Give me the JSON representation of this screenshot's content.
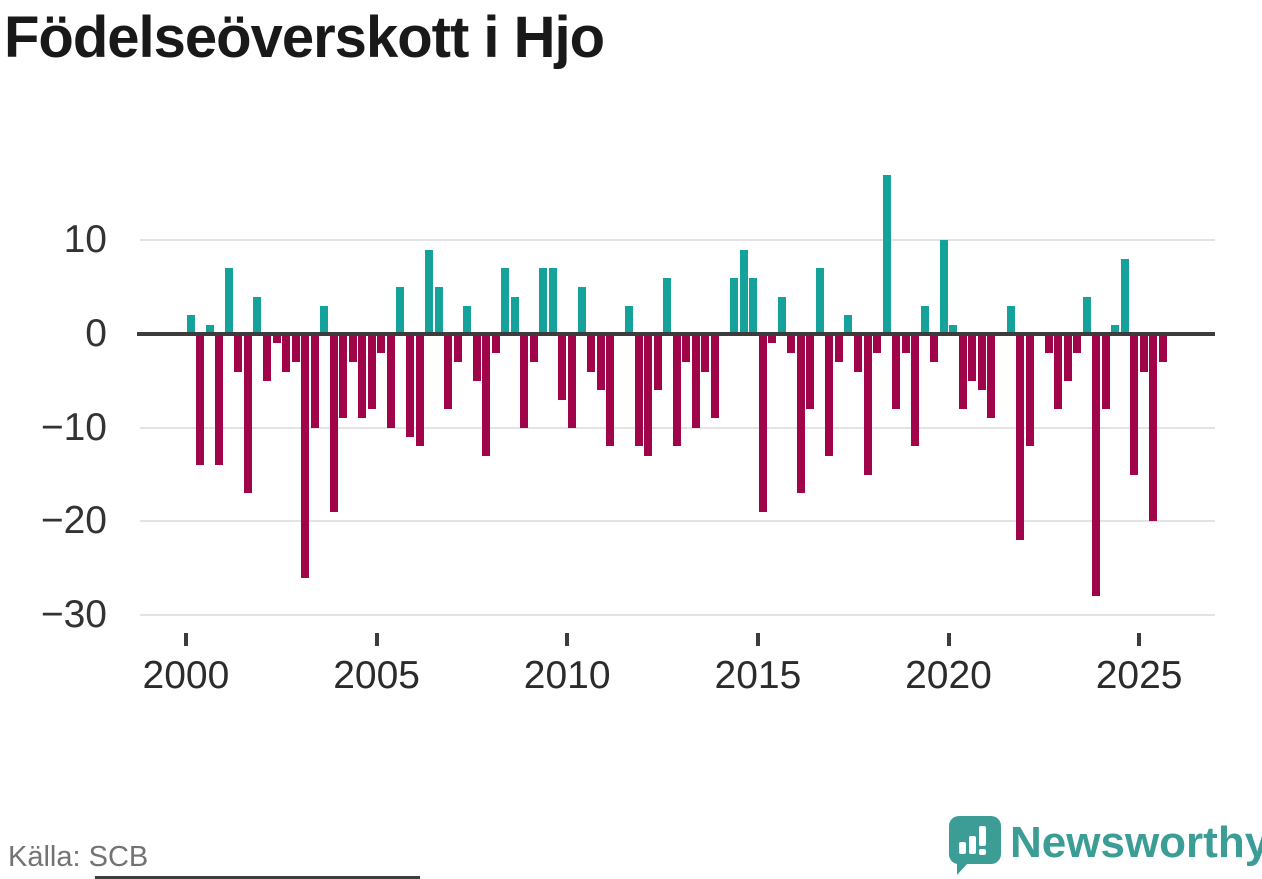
{
  "title": "Födelseöverskott i Hjo",
  "footer": {
    "source": "Källa: SCB",
    "brand": "Newsworthy"
  },
  "chart_data": {
    "type": "bar",
    "title": "Födelseöverskott i Hjo",
    "x_unit": "quarter",
    "start": "2000-Q1",
    "end": "2025-Q3",
    "series": [
      {
        "year": 2000,
        "values": [
          2,
          -14,
          1,
          -14
        ]
      },
      {
        "year": 2001,
        "values": [
          7,
          -4,
          -17,
          4
        ]
      },
      {
        "year": 2002,
        "values": [
          -5,
          -1,
          -4,
          -3
        ]
      },
      {
        "year": 2003,
        "values": [
          -26,
          -10,
          3,
          -19
        ]
      },
      {
        "year": 2004,
        "values": [
          -9,
          -3,
          -9,
          -8
        ]
      },
      {
        "year": 2005,
        "values": [
          -2,
          -10,
          5,
          -11
        ]
      },
      {
        "year": 2006,
        "values": [
          -12,
          9,
          5,
          -8
        ]
      },
      {
        "year": 2007,
        "values": [
          -3,
          3,
          -5,
          -13
        ]
      },
      {
        "year": 2008,
        "values": [
          -2,
          7,
          4,
          -10
        ]
      },
      {
        "year": 2009,
        "values": [
          -3,
          7,
          7,
          -7
        ]
      },
      {
        "year": 2010,
        "values": [
          -10,
          5,
          -4,
          -6
        ]
      },
      {
        "year": 2011,
        "values": [
          -12,
          0,
          3,
          -12
        ]
      },
      {
        "year": 2012,
        "values": [
          -13,
          -6,
          6,
          -12
        ]
      },
      {
        "year": 2013,
        "values": [
          -3,
          -10,
          -4,
          -9
        ]
      },
      {
        "year": 2014,
        "values": [
          0,
          6,
          9,
          6
        ]
      },
      {
        "year": 2015,
        "values": [
          -19,
          -1,
          4,
          -2
        ]
      },
      {
        "year": 2016,
        "values": [
          -17,
          -8,
          7,
          -13
        ]
      },
      {
        "year": 2017,
        "values": [
          -3,
          2,
          -4,
          -15
        ]
      },
      {
        "year": 2018,
        "values": [
          -2,
          17,
          -8,
          -2
        ]
      },
      {
        "year": 2019,
        "values": [
          -12,
          3,
          -3,
          10
        ]
      },
      {
        "year": 2020,
        "values": [
          1,
          -8,
          -5,
          -6
        ]
      },
      {
        "year": 2021,
        "values": [
          -9,
          0,
          3,
          -22
        ]
      },
      {
        "year": 2022,
        "values": [
          -12,
          0,
          -2,
          -8
        ]
      },
      {
        "year": 2023,
        "values": [
          -5,
          -2,
          4,
          -28
        ]
      },
      {
        "year": 2024,
        "values": [
          -8,
          1,
          8,
          -15
        ]
      },
      {
        "year": 2025,
        "values": [
          -4,
          -20,
          -3
        ]
      }
    ],
    "y_ticks": [
      {
        "value": 10,
        "label": "10"
      },
      {
        "value": 0,
        "label": "0"
      },
      {
        "value": -10,
        "label": "−10"
      },
      {
        "value": -20,
        "label": "−20"
      },
      {
        "value": -30,
        "label": "−30"
      }
    ],
    "x_ticks": [
      {
        "year": 2000,
        "label": "2000"
      },
      {
        "year": 2005,
        "label": "2005"
      },
      {
        "year": 2010,
        "label": "2010"
      },
      {
        "year": 2015,
        "label": "2015"
      },
      {
        "year": 2020,
        "label": "2020"
      },
      {
        "year": 2025,
        "label": "2025"
      }
    ],
    "ylim": [
      -30,
      18
    ],
    "grid": "horizontal",
    "legend": "none",
    "colors": {
      "positive": "#14a29a",
      "negative": "#a10549",
      "axis": "#3c3c3c",
      "grid": "#e3e3e3",
      "brand": "#3b9d96"
    }
  }
}
